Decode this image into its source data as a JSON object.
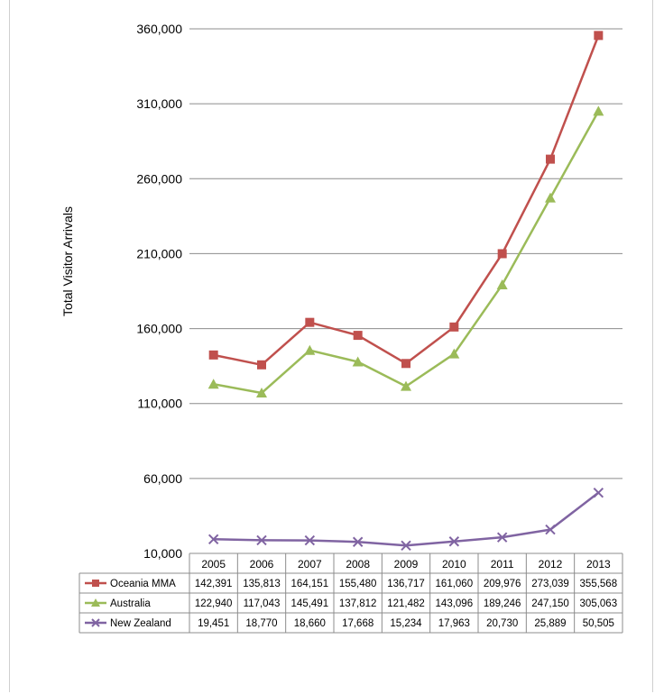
{
  "chart_data": {
    "type": "line",
    "title": "",
    "xlabel": "",
    "ylabel": "Total Visitor Arrivals",
    "ylim": [
      10000,
      360000
    ],
    "yticks": [
      10000,
      60000,
      110000,
      160000,
      210000,
      260000,
      310000,
      360000
    ],
    "ytick_labels": [
      "10,000",
      "60,000",
      "110,000",
      "160,000",
      "210,000",
      "260,000",
      "310,000",
      "360,000"
    ],
    "grid": true,
    "legend": "data table below plot",
    "categories": [
      "2005",
      "2006",
      "2007",
      "2008",
      "2009",
      "2010",
      "2011",
      "2012",
      "2013"
    ],
    "series": [
      {
        "name": "Oceania MMA",
        "color": "#c0504d",
        "marker": "square",
        "values": [
          142391,
          135813,
          164151,
          155480,
          136717,
          161060,
          209976,
          273039,
          355568
        ],
        "labels": [
          "142,391",
          "135,813",
          "164,151",
          "155,480",
          "136,717",
          "161,060",
          "209,976",
          "273,039",
          "355,568"
        ]
      },
      {
        "name": "Australia",
        "color": "#9bbb59",
        "marker": "triangle",
        "values": [
          122940,
          117043,
          145491,
          137812,
          121482,
          143096,
          189246,
          247150,
          305063
        ],
        "labels": [
          "122,940",
          "117,043",
          "145,491",
          "137,812",
          "121,482",
          "143,096",
          "189,246",
          "247,150",
          "305,063"
        ]
      },
      {
        "name": "New Zealand",
        "color": "#8064a2",
        "marker": "x",
        "values": [
          19451,
          18770,
          18660,
          17668,
          15234,
          17963,
          20730,
          25889,
          50505
        ],
        "labels": [
          "19,451",
          "18,770",
          "18,660",
          "17,668",
          "15,234",
          "17,963",
          "20,730",
          "25,889",
          "50,505"
        ]
      }
    ]
  }
}
